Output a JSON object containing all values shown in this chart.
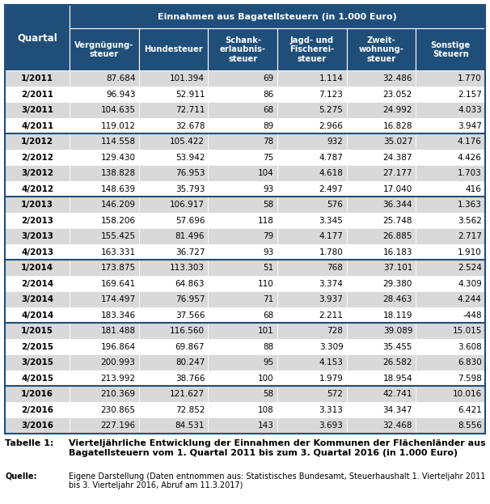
{
  "header_top": "Einnahmen aus Bagatellsteuern (in 1.000 Euro)",
  "col_headers": [
    "Vergnügung-\nsteuer",
    "Hundesteuer",
    "Schank-\nerlaubnis-\nsteuer",
    "Jagd- und\nFischerei-\nsteuer",
    "Zweit-\nwohnung-\nsteuer",
    "Sonstige\nSteuern"
  ],
  "row_labels": [
    "1/2011",
    "2/2011",
    "3/2011",
    "4/2011",
    "1/2012",
    "2/2012",
    "3/2012",
    "4/2012",
    "1/2013",
    "2/2013",
    "3/2013",
    "4/2013",
    "1/2014",
    "2/2014",
    "3/2014",
    "4/2014",
    "1/2015",
    "2/2015",
    "3/2015",
    "4/2015",
    "1/2016",
    "2/2016",
    "3/2016"
  ],
  "data": [
    [
      "87.684",
      "101.394",
      "69",
      "1.114",
      "32.486",
      "1.770"
    ],
    [
      "96.943",
      "52.911",
      "86",
      "7.123",
      "23.052",
      "2.157"
    ],
    [
      "104.635",
      "72.711",
      "68",
      "5.275",
      "24.992",
      "4.033"
    ],
    [
      "119.012",
      "32.678",
      "89",
      "2.966",
      "16.828",
      "3.947"
    ],
    [
      "114.558",
      "105.422",
      "78",
      "932",
      "35.027",
      "4.176"
    ],
    [
      "129.430",
      "53.942",
      "75",
      "4.787",
      "24.387",
      "4.426"
    ],
    [
      "138.828",
      "76.953",
      "104",
      "4.618",
      "27.177",
      "1.703"
    ],
    [
      "148.639",
      "35.793",
      "93",
      "2.497",
      "17.040",
      "416"
    ],
    [
      "146.209",
      "106.917",
      "58",
      "576",
      "36.344",
      "1.363"
    ],
    [
      "158.206",
      "57.696",
      "118",
      "3.345",
      "25.748",
      "3.562"
    ],
    [
      "155.425",
      "81.496",
      "79",
      "4.177",
      "26.885",
      "2.717"
    ],
    [
      "163.331",
      "36.727",
      "93",
      "1.780",
      "16.183",
      "1.910"
    ],
    [
      "173.875",
      "113.303",
      "51",
      "768",
      "37.101",
      "2.524"
    ],
    [
      "169.641",
      "64.863",
      "110",
      "3.374",
      "29.380",
      "4.309"
    ],
    [
      "174.497",
      "76.957",
      "71",
      "3.937",
      "28.463",
      "4.244"
    ],
    [
      "183.346",
      "37.566",
      "68",
      "2.211",
      "18.119",
      "-448"
    ],
    [
      "181.488",
      "116.560",
      "101",
      "728",
      "39.089",
      "15.015"
    ],
    [
      "196.864",
      "69.867",
      "88",
      "3.309",
      "35.455",
      "3.608"
    ],
    [
      "200.993",
      "80.247",
      "95",
      "4.153",
      "26.582",
      "6.830"
    ],
    [
      "213.992",
      "38.766",
      "100",
      "1.979",
      "18.954",
      "7.598"
    ],
    [
      "210.369",
      "121.627",
      "58",
      "572",
      "42.741",
      "10.016"
    ],
    [
      "230.865",
      "72.852",
      "108",
      "3.313",
      "34.347",
      "6.421"
    ],
    [
      "227.196",
      "84.531",
      "143",
      "3.693",
      "32.468",
      "8.556"
    ]
  ],
  "caption_label": "Tabelle 1:",
  "caption_text": "Vierteljährliche Entwicklung der Einnahmen der Kommunen der Flächenländer aus\nBagatellsteuern vom 1. Quartal 2011 bis zum 3. Quartal 2016 (in 1.000 Euro)",
  "source_label": "Quelle:",
  "source_text": "Eigene Darstellung (Daten entnommen aus: Statistisches Bundesamt, Steuerhaushalt 1. Vierteljahr 2011\nbis 3. Vierteljahr 2016, Abruf am 11.3.2017)",
  "header_bg": "#1F4E79",
  "header_text_color": "#FFFFFF",
  "row_odd_bg": "#D9D9D9",
  "row_even_bg": "#FFFFFF",
  "cell_text_color": "#000000",
  "sep_color": "#1F4E79",
  "year_sep_rows": [
    4,
    8,
    12,
    16,
    20
  ]
}
